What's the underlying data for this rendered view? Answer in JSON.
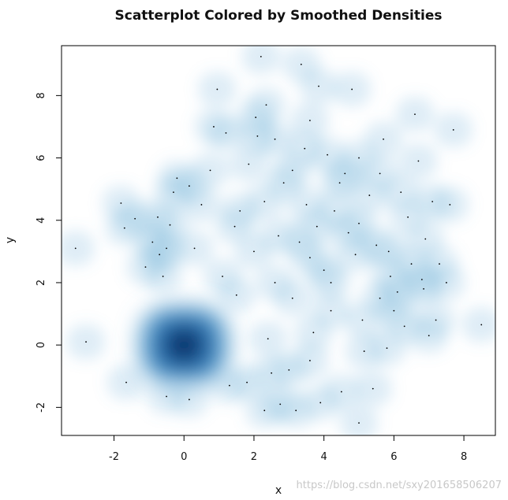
{
  "watermark": "https://blog.csdn.net/sxy201658506207",
  "colors": {
    "low": "#ffffff",
    "mid": "#6baed6",
    "high": "#08306b",
    "point": "#000000"
  },
  "chart_data": {
    "type": "scatter",
    "title": "Scatterplot Colored by Smoothed Densities",
    "xlabel": "x",
    "ylabel": "y",
    "xlim": [
      -3.5,
      8.9
    ],
    "ylim": [
      -2.9,
      9.6
    ],
    "xticks": [
      -2,
      0,
      2,
      4,
      6,
      8
    ],
    "yticks": [
      -2,
      0,
      2,
      4,
      6,
      8
    ],
    "grid": false,
    "legend": "none",
    "density_color": "blues",
    "dense_cluster": {
      "center": [
        0.0,
        0.0
      ],
      "spread": 0.55
    },
    "points": [
      [
        -3.1,
        3.1
      ],
      [
        -2.8,
        0.1
      ],
      [
        -1.8,
        4.55
      ],
      [
        -1.7,
        3.75
      ],
      [
        -1.65,
        -1.2
      ],
      [
        -1.4,
        4.05
      ],
      [
        -1.1,
        2.5
      ],
      [
        -0.9,
        3.3
      ],
      [
        -0.75,
        4.1
      ],
      [
        -0.7,
        2.9
      ],
      [
        -0.6,
        2.2
      ],
      [
        -0.5,
        3.1
      ],
      [
        -0.5,
        -1.65
      ],
      [
        -0.4,
        3.85
      ],
      [
        -0.3,
        4.9
      ],
      [
        -0.2,
        5.35
      ],
      [
        0.15,
        5.1
      ],
      [
        0.15,
        -1.75
      ],
      [
        0.3,
        3.1
      ],
      [
        0.5,
        4.5
      ],
      [
        0.75,
        5.6
      ],
      [
        0.85,
        7.0
      ],
      [
        0.95,
        8.2
      ],
      [
        1.1,
        2.2
      ],
      [
        1.2,
        6.8
      ],
      [
        1.3,
        -1.3
      ],
      [
        1.45,
        3.8
      ],
      [
        1.6,
        4.3
      ],
      [
        1.8,
        -1.2
      ],
      [
        1.85,
        5.8
      ],
      [
        2.0,
        3.0
      ],
      [
        2.05,
        7.3
      ],
      [
        2.1,
        6.7
      ],
      [
        2.2,
        9.25
      ],
      [
        2.3,
        4.6
      ],
      [
        2.3,
        -2.1
      ],
      [
        2.35,
        7.7
      ],
      [
        2.4,
        0.2
      ],
      [
        2.5,
        -0.9
      ],
      [
        2.6,
        6.6
      ],
      [
        2.7,
        3.5
      ],
      [
        2.75,
        -1.9
      ],
      [
        2.85,
        5.2
      ],
      [
        3.0,
        -0.8
      ],
      [
        3.1,
        5.6
      ],
      [
        3.2,
        -2.1
      ],
      [
        3.3,
        3.3
      ],
      [
        3.35,
        9.0
      ],
      [
        3.45,
        6.3
      ],
      [
        3.5,
        4.5
      ],
      [
        3.6,
        -0.5
      ],
      [
        3.6,
        7.2
      ],
      [
        3.7,
        0.4
      ],
      [
        3.8,
        3.8
      ],
      [
        3.85,
        8.3
      ],
      [
        3.9,
        -1.85
      ],
      [
        4.0,
        2.4
      ],
      [
        4.1,
        6.1
      ],
      [
        4.2,
        1.1
      ],
      [
        4.3,
        4.3
      ],
      [
        4.45,
        5.2
      ],
      [
        4.5,
        -1.5
      ],
      [
        4.7,
        3.6
      ],
      [
        4.8,
        8.2
      ],
      [
        4.9,
        2.9
      ],
      [
        5.0,
        6.0
      ],
      [
        5.0,
        -2.5
      ],
      [
        5.1,
        0.8
      ],
      [
        5.15,
        -0.2
      ],
      [
        5.3,
        4.8
      ],
      [
        5.4,
        -1.4
      ],
      [
        5.5,
        3.2
      ],
      [
        5.6,
        1.5
      ],
      [
        5.6,
        5.5
      ],
      [
        5.7,
        6.6
      ],
      [
        5.8,
        -0.1
      ],
      [
        5.85,
        3.0
      ],
      [
        5.9,
        2.2
      ],
      [
        6.0,
        1.1
      ],
      [
        6.1,
        1.7
      ],
      [
        6.2,
        4.9
      ],
      [
        6.3,
        0.6
      ],
      [
        6.4,
        4.1
      ],
      [
        6.5,
        2.6
      ],
      [
        6.6,
        7.4
      ],
      [
        6.7,
        5.9
      ],
      [
        6.8,
        2.1
      ],
      [
        6.85,
        1.8
      ],
      [
        6.9,
        3.4
      ],
      [
        7.0,
        0.3
      ],
      [
        7.1,
        4.6
      ],
      [
        7.2,
        0.8
      ],
      [
        7.3,
        2.6
      ],
      [
        7.5,
        2.0
      ],
      [
        7.6,
        4.5
      ],
      [
        7.7,
        6.9
      ],
      [
        8.5,
        0.65
      ],
      [
        4.6,
        5.5
      ],
      [
        3.1,
        1.5
      ],
      [
        4.2,
        2.0
      ],
      [
        3.6,
        2.8
      ],
      [
        2.6,
        2.0
      ],
      [
        1.5,
        1.6
      ],
      [
        5.0,
        3.9
      ]
    ]
  }
}
